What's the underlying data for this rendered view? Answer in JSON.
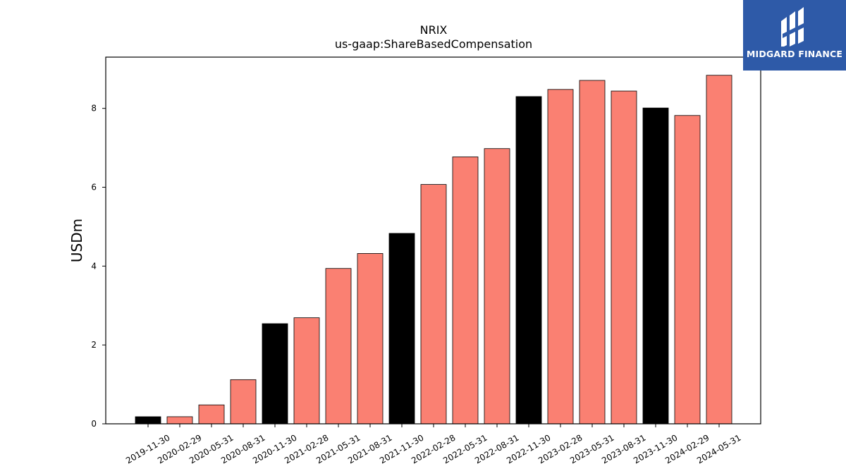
{
  "chart_data": {
    "type": "bar",
    "title": "NRIX",
    "subtitle": "us-gaap:ShareBasedCompensation",
    "xlabel": "",
    "ylabel": "USDm",
    "ylim": [
      0,
      9.3
    ],
    "yticks": [
      0,
      2,
      4,
      6,
      8
    ],
    "categories": [
      "2019-11-30",
      "2020-02-29",
      "2020-05-31",
      "2020-08-31",
      "2020-11-30",
      "2021-02-28",
      "2021-05-31",
      "2021-08-31",
      "2021-11-30",
      "2022-02-28",
      "2022-05-31",
      "2022-08-31",
      "2022-11-30",
      "2023-02-28",
      "2023-05-31",
      "2023-08-31",
      "2023-11-30",
      "2024-02-29",
      "2024-05-31"
    ],
    "values": [
      0.18,
      0.18,
      0.48,
      1.12,
      2.54,
      2.69,
      3.94,
      4.32,
      4.83,
      6.07,
      6.77,
      6.98,
      8.3,
      8.48,
      8.71,
      8.44,
      8.01,
      7.82,
      8.84
    ],
    "bar_colors": [
      "#000000",
      "#fa8072",
      "#fa8072",
      "#fa8072",
      "#000000",
      "#fa8072",
      "#fa8072",
      "#fa8072",
      "#000000",
      "#fa8072",
      "#fa8072",
      "#fa8072",
      "#000000",
      "#fa8072",
      "#fa8072",
      "#fa8072",
      "#000000",
      "#fa8072",
      "#fa8072"
    ],
    "grid": false,
    "legend": "none"
  },
  "logo": {
    "text": "MIDGARD FINANCE",
    "color": "#2e5aa8"
  }
}
